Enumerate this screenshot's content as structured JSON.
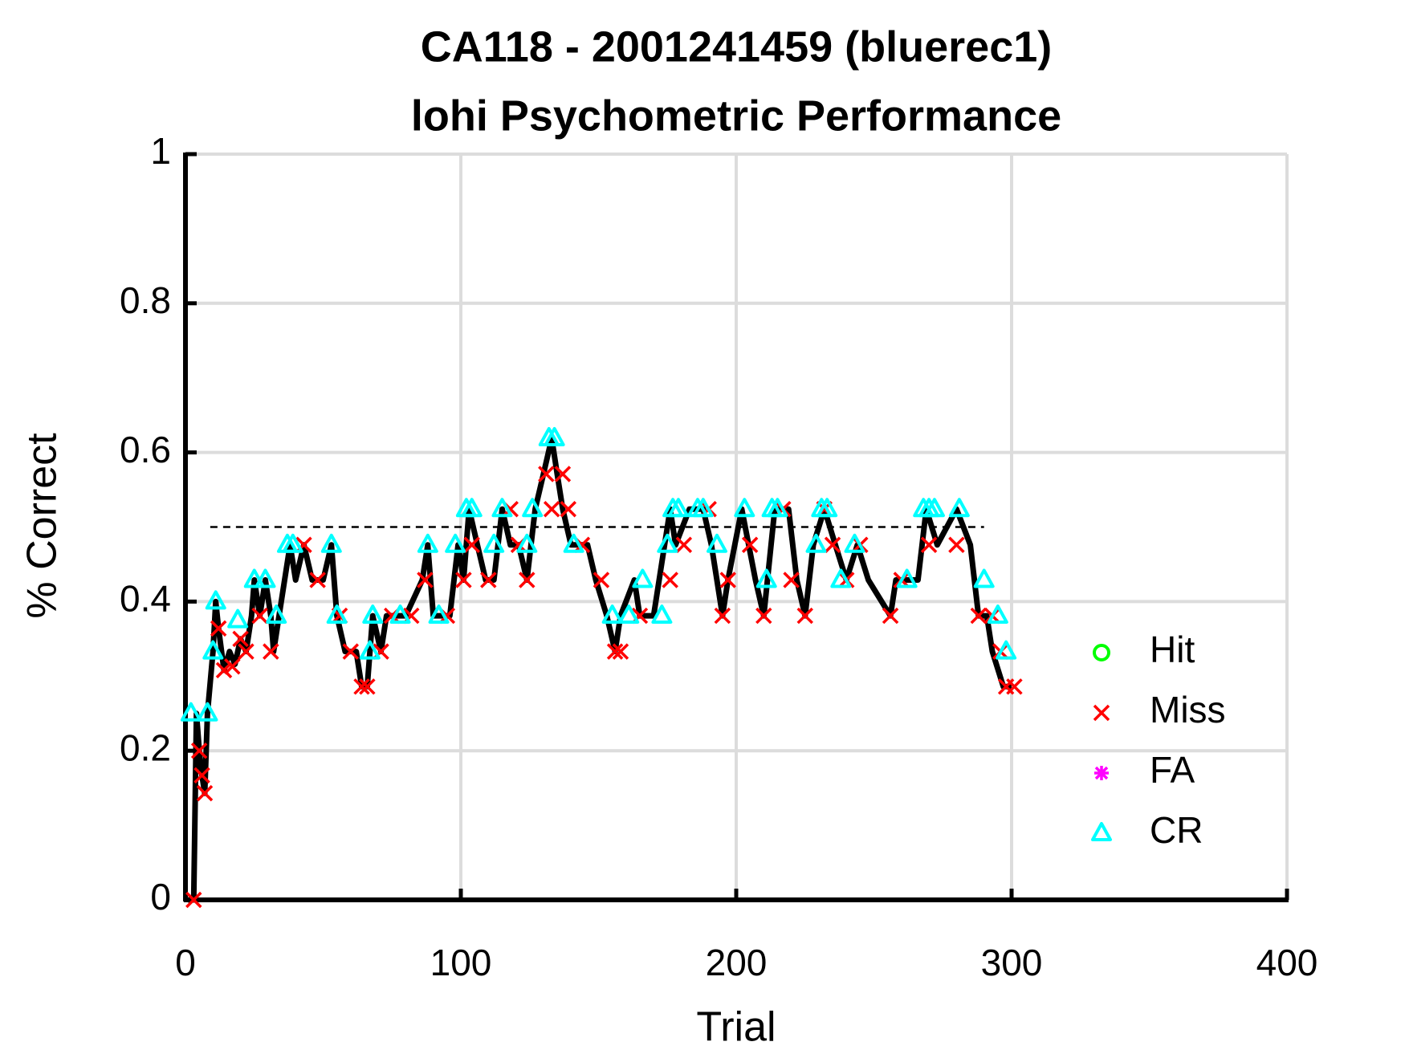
{
  "chart_data": {
    "type": "scatter",
    "title": [
      "CA118 - 2001241459 (bluerec1)",
      "lohi Psychometric Performance"
    ],
    "xlabel": "Trial",
    "ylabel": "% Correct",
    "xlim": [
      0,
      400
    ],
    "ylim": [
      0,
      1
    ],
    "xticks": [
      0,
      100,
      200,
      300,
      400
    ],
    "yticks": [
      0,
      0.2,
      0.4,
      0.6,
      0.8,
      1
    ],
    "grid": true,
    "legend": "right",
    "reference_line": {
      "y": 0.5,
      "x": [
        9,
        290
      ],
      "color": "#000000"
    },
    "line": {
      "color": "#000000",
      "x": [
        1,
        3,
        4,
        5,
        6,
        7,
        8,
        10,
        11,
        12,
        14,
        16,
        18,
        20,
        22,
        24,
        25,
        27,
        29,
        31,
        32,
        34,
        36,
        38,
        40,
        43,
        46,
        50,
        53,
        55,
        58,
        62,
        64,
        66,
        68,
        71,
        73,
        80,
        86,
        88,
        90,
        96,
        99,
        101,
        103,
        106,
        109,
        112,
        115,
        118,
        121,
        124,
        127,
        130,
        133,
        135,
        137,
        140,
        146,
        149,
        153,
        156,
        158,
        163,
        165,
        170,
        172,
        176,
        178,
        183,
        188,
        191,
        195,
        197,
        202,
        207,
        210,
        214,
        219,
        222,
        225,
        228,
        232,
        236,
        240,
        244,
        248,
        256,
        258,
        266,
        269,
        273,
        280,
        285,
        288,
        291,
        293,
        297,
        300
      ],
      "y": [
        0,
        0,
        0.25,
        0.2,
        0.167,
        0.143,
        0.25,
        0.333,
        0.4,
        0.364,
        0.308,
        0.333,
        0.316,
        0.35,
        0.333,
        0.381,
        0.429,
        0.381,
        0.429,
        0.381,
        0.333,
        0.381,
        0.429,
        0.476,
        0.429,
        0.476,
        0.429,
        0.429,
        0.476,
        0.381,
        0.333,
        0.333,
        0.286,
        0.286,
        0.381,
        0.333,
        0.381,
        0.381,
        0.429,
        0.476,
        0.381,
        0.381,
        0.476,
        0.429,
        0.524,
        0.476,
        0.429,
        0.429,
        0.524,
        0.476,
        0.476,
        0.429,
        0.524,
        0.571,
        0.619,
        0.571,
        0.524,
        0.476,
        0.476,
        0.429,
        0.381,
        0.333,
        0.381,
        0.429,
        0.381,
        0.381,
        0.429,
        0.524,
        0.476,
        0.524,
        0.524,
        0.476,
        0.381,
        0.429,
        0.524,
        0.429,
        0.381,
        0.524,
        0.524,
        0.429,
        0.381,
        0.476,
        0.524,
        0.476,
        0.429,
        0.476,
        0.429,
        0.381,
        0.429,
        0.429,
        0.524,
        0.476,
        0.524,
        0.476,
        0.381,
        0.381,
        0.333,
        0.286,
        0.286
      ]
    },
    "series": [
      {
        "name": "Hit",
        "color": "#00ff00",
        "marker": "o",
        "x": [],
        "y": []
      },
      {
        "name": "Miss",
        "color": "#ff0000",
        "marker": "x",
        "x": [
          3,
          5,
          6,
          7,
          12,
          14,
          17,
          20,
          22,
          27,
          31,
          43,
          48,
          56,
          60,
          64,
          66,
          71,
          75,
          82,
          87,
          95,
          101,
          104,
          110,
          118,
          121,
          124,
          131,
          133,
          137,
          139,
          144,
          151,
          156,
          158,
          165,
          176,
          181,
          190,
          195,
          197,
          205,
          210,
          217,
          220,
          225,
          232,
          235,
          240,
          245,
          256,
          260,
          270,
          280,
          288,
          293,
          296,
          298,
          301
        ],
        "y": [
          0,
          0.2,
          0.167,
          0.143,
          0.364,
          0.308,
          0.313,
          0.35,
          0.333,
          0.381,
          0.333,
          0.476,
          0.429,
          0.381,
          0.333,
          0.286,
          0.286,
          0.333,
          0.381,
          0.381,
          0.429,
          0.381,
          0.429,
          0.476,
          0.429,
          0.524,
          0.476,
          0.429,
          0.571,
          0.524,
          0.571,
          0.524,
          0.476,
          0.429,
          0.333,
          0.333,
          0.381,
          0.429,
          0.476,
          0.524,
          0.381,
          0.429,
          0.476,
          0.381,
          0.524,
          0.429,
          0.381,
          0.524,
          0.476,
          0.429,
          0.476,
          0.381,
          0.429,
          0.476,
          0.476,
          0.381,
          0.381,
          0.333,
          0.286,
          0.286
        ]
      },
      {
        "name": "FA",
        "color": "#ff00ff",
        "marker": "*",
        "x": [],
        "y": []
      },
      {
        "name": "CR",
        "color": "#00ffff",
        "marker": "^",
        "x": [
          2,
          8,
          10,
          11,
          19,
          25,
          29,
          33,
          37,
          39,
          53,
          55,
          67,
          68,
          78,
          88,
          92,
          98,
          102,
          104,
          112,
          115,
          124,
          126,
          132,
          134,
          141,
          155,
          161,
          166,
          173,
          175,
          177,
          179,
          186,
          188,
          193,
          203,
          211,
          213,
          215,
          229,
          231,
          233,
          238,
          243,
          262,
          268,
          270,
          272,
          281,
          290,
          295,
          298
        ],
        "y": [
          0.25,
          0.25,
          0.333,
          0.4,
          0.375,
          0.429,
          0.429,
          0.381,
          0.476,
          0.476,
          0.476,
          0.381,
          0.333,
          0.381,
          0.381,
          0.476,
          0.381,
          0.476,
          0.524,
          0.524,
          0.476,
          0.524,
          0.476,
          0.524,
          0.619,
          0.619,
          0.476,
          0.381,
          0.381,
          0.429,
          0.381,
          0.476,
          0.524,
          0.524,
          0.524,
          0.524,
          0.476,
          0.524,
          0.429,
          0.524,
          0.524,
          0.476,
          0.524,
          0.524,
          0.429,
          0.476,
          0.429,
          0.524,
          0.524,
          0.524,
          0.524,
          0.429,
          0.381,
          0.333
        ]
      }
    ]
  }
}
